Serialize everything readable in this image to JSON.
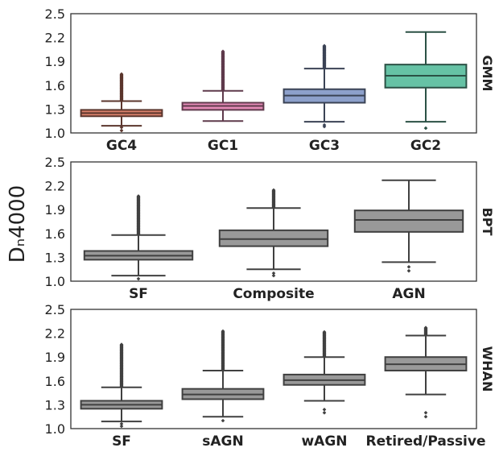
{
  "chart_data": {
    "type": "box",
    "ylabel": "Dₙ4000",
    "panels": [
      {
        "label": "GMM",
        "ylim": [
          1.0,
          2.5
        ],
        "yticks": [
          "1.0",
          "1.3",
          "1.6",
          "1.9",
          "2.2",
          "2.5"
        ],
        "categories": [
          "GC4",
          "GC1",
          "GC3",
          "GC2"
        ],
        "colors": [
          "#d8806a",
          "#e389b5",
          "#8da0cb",
          "#66c2a5"
        ],
        "boxes": [
          {
            "whislo": 1.09,
            "q1": 1.21,
            "med": 1.25,
            "q3": 1.29,
            "whishi": 1.4,
            "fliers_low": [
              1.03,
              1.07
            ],
            "fliers_high_max": 1.74
          },
          {
            "whislo": 1.15,
            "q1": 1.29,
            "med": 1.34,
            "q3": 1.38,
            "whishi": 1.53,
            "fliers_low": [],
            "fliers_high_max": 2.03
          },
          {
            "whislo": 1.14,
            "q1": 1.38,
            "med": 1.47,
            "q3": 1.55,
            "whishi": 1.81,
            "fliers_low": [
              1.08,
              1.1
            ],
            "fliers_high_max": 2.1
          },
          {
            "whislo": 1.14,
            "q1": 1.57,
            "med": 1.72,
            "q3": 1.86,
            "whishi": 2.27,
            "fliers_low": [
              1.06
            ],
            "fliers_high_max": null
          }
        ]
      },
      {
        "label": "BPT",
        "ylim": [
          1.0,
          2.5
        ],
        "yticks": [
          "1.0",
          "1.3",
          "1.6",
          "1.9",
          "2.2",
          "2.5"
        ],
        "categories": [
          "SF",
          "Composite",
          "AGN"
        ],
        "colors": [
          "#999999",
          "#999999",
          "#999999"
        ],
        "boxes": [
          {
            "whislo": 1.07,
            "q1": 1.27,
            "med": 1.32,
            "q3": 1.38,
            "whishi": 1.58,
            "fliers_low": [
              1.03
            ],
            "fliers_high_max": 2.07
          },
          {
            "whislo": 1.15,
            "q1": 1.44,
            "med": 1.53,
            "q3": 1.64,
            "whishi": 1.92,
            "fliers_low": [
              1.07,
              1.1
            ],
            "fliers_high_max": 2.15
          },
          {
            "whislo": 1.24,
            "q1": 1.62,
            "med": 1.77,
            "q3": 1.89,
            "whishi": 2.27,
            "fliers_low": [
              1.13,
              1.18
            ],
            "fliers_high_max": null
          }
        ]
      },
      {
        "label": "WHAN",
        "ylim": [
          1.0,
          2.5
        ],
        "yticks": [
          "1.0",
          "1.3",
          "1.6",
          "1.9",
          "2.2",
          "2.5"
        ],
        "categories": [
          "SF",
          "sAGN",
          "wAGN",
          "Retired/Passive"
        ],
        "colors": [
          "#999999",
          "#999999",
          "#999999",
          "#999999"
        ],
        "boxes": [
          {
            "whislo": 1.09,
            "q1": 1.25,
            "med": 1.3,
            "q3": 1.35,
            "whishi": 1.52,
            "fliers_low": [
              1.03,
              1.06
            ],
            "fliers_high_max": 2.06
          },
          {
            "whislo": 1.15,
            "q1": 1.37,
            "med": 1.43,
            "q3": 1.5,
            "whishi": 1.73,
            "fliers_low": [
              1.1
            ],
            "fliers_high_max": 2.23
          },
          {
            "whislo": 1.35,
            "q1": 1.55,
            "med": 1.61,
            "q3": 1.68,
            "whishi": 1.9,
            "fliers_low": [
              1.2,
              1.24
            ],
            "fliers_high_max": 2.22
          },
          {
            "whislo": 1.43,
            "q1": 1.73,
            "med": 1.81,
            "q3": 1.9,
            "whishi": 2.17,
            "fliers_low": [
              1.15,
              1.2
            ],
            "fliers_high_max": 2.27
          }
        ]
      }
    ]
  }
}
